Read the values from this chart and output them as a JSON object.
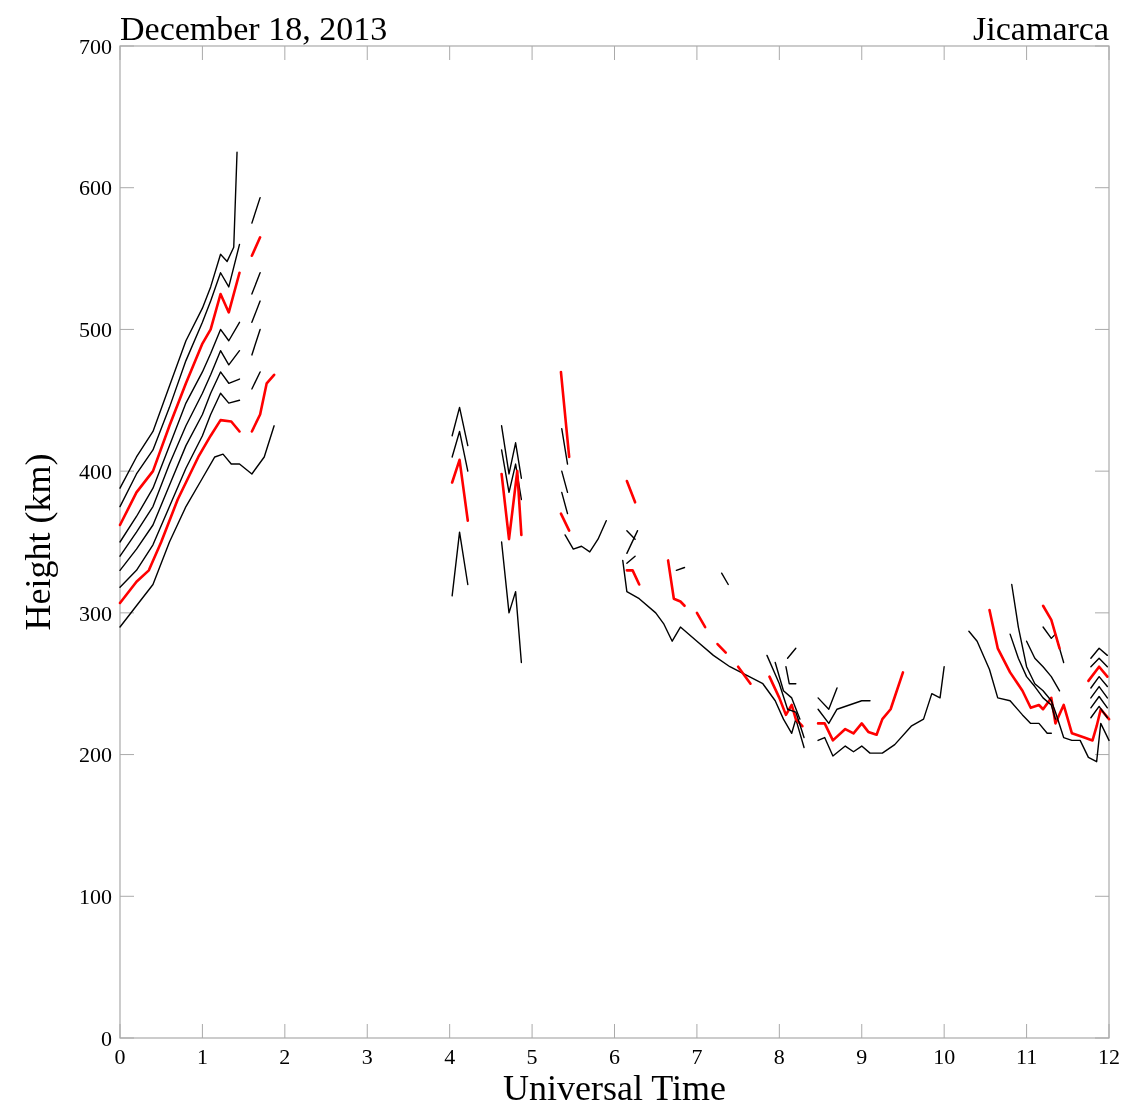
{
  "chart_data": {
    "type": "line",
    "title": "December 18, 2013",
    "subtitle": "Jicamarca",
    "xlabel": "Universal Time",
    "ylabel": "Height (km)",
    "xlim": [
      0,
      12
    ],
    "ylim": [
      0,
      700
    ],
    "xticks": [
      0,
      1,
      2,
      3,
      4,
      5,
      6,
      7,
      8,
      9,
      10,
      11,
      12
    ],
    "yticks": [
      0,
      100,
      200,
      300,
      400,
      500,
      600,
      700
    ],
    "grid": false,
    "series": [
      {
        "color": "#000000",
        "x": [
          0,
          0.2,
          0.4,
          0.6,
          0.8,
          1.0,
          1.15,
          1.25,
          1.35,
          1.45,
          1.6,
          1.75,
          1.87
        ],
        "values": [
          290,
          305,
          320,
          350,
          375,
          395,
          410,
          412,
          405,
          405,
          398,
          410,
          432
        ]
      },
      {
        "color": "#ff0000",
        "x": [
          0,
          0.2,
          0.35,
          0.5,
          0.7,
          0.95,
          1.1,
          1.22,
          1.35,
          1.45
        ],
        "values": [
          307,
          322,
          330,
          350,
          380,
          410,
          425,
          436,
          435,
          428
        ]
      },
      {
        "color": "#000000",
        "x": [
          0,
          0.2,
          0.4,
          0.6,
          0.8,
          1.0,
          1.1,
          1.22,
          1.32,
          1.45
        ],
        "values": [
          318,
          330,
          348,
          375,
          402,
          425,
          440,
          455,
          448,
          450
        ]
      },
      {
        "color": "#000000",
        "x": [
          0,
          0.2,
          0.4,
          0.6,
          0.8,
          1.0,
          1.1,
          1.22,
          1.32,
          1.45
        ],
        "values": [
          330,
          345,
          362,
          390,
          418,
          440,
          455,
          470,
          462,
          465
        ]
      },
      {
        "color": "#000000",
        "x": [
          0,
          0.2,
          0.4,
          0.6,
          0.8,
          1.0,
          1.1,
          1.22,
          1.32,
          1.45
        ],
        "values": [
          340,
          357,
          375,
          405,
          432,
          455,
          468,
          485,
          475,
          485
        ]
      },
      {
        "color": "#000000",
        "x": [
          0,
          0.2,
          0.4,
          0.6,
          0.8,
          1.0,
          1.1,
          1.22,
          1.32,
          1.45
        ],
        "values": [
          350,
          368,
          388,
          418,
          448,
          470,
          483,
          500,
          492,
          505
        ]
      },
      {
        "color": "#ff0000",
        "x": [
          0,
          0.2,
          0.4,
          0.6,
          0.8,
          1.0,
          1.1,
          1.22,
          1.32,
          1.45
        ],
        "values": [
          362,
          385,
          400,
          432,
          462,
          490,
          500,
          525,
          512,
          540
        ]
      },
      {
        "color": "#000000",
        "x": [
          0,
          0.2,
          0.4,
          0.6,
          0.8,
          1.0,
          1.1,
          1.22,
          1.32,
          1.45
        ],
        "values": [
          375,
          398,
          415,
          445,
          478,
          505,
          520,
          540,
          530,
          560
        ]
      },
      {
        "color": "#000000",
        "x": [
          0,
          0.2,
          0.4,
          0.6,
          0.8,
          1.0,
          1.1,
          1.22,
          1.3,
          1.38,
          1.42
        ],
        "values": [
          388,
          410,
          428,
          460,
          492,
          515,
          530,
          553,
          548,
          558,
          625
        ]
      },
      {
        "color": "#000000",
        "x": [
          1.6,
          1.7
        ],
        "values": [
          575,
          593
        ]
      },
      {
        "color": "#ff0000",
        "x": [
          1.6,
          1.7
        ],
        "values": [
          552,
          565
        ]
      },
      {
        "color": "#000000",
        "x": [
          1.6,
          1.7
        ],
        "values": [
          525,
          540
        ]
      },
      {
        "color": "#000000",
        "x": [
          1.6,
          1.7
        ],
        "values": [
          505,
          520
        ]
      },
      {
        "color": "#000000",
        "x": [
          1.6,
          1.7
        ],
        "values": [
          482,
          500
        ]
      },
      {
        "color": "#000000",
        "x": [
          1.6,
          1.7
        ],
        "values": [
          458,
          470
        ]
      },
      {
        "color": "#ff0000",
        "x": [
          1.6,
          1.7,
          1.78,
          1.87
        ],
        "values": [
          428,
          440,
          462,
          468
        ]
      },
      {
        "color": "#000000",
        "x": [
          4.03,
          4.12,
          4.22
        ],
        "values": [
          425,
          445,
          418
        ]
      },
      {
        "color": "#000000",
        "x": [
          4.03,
          4.12,
          4.22
        ],
        "values": [
          410,
          428,
          400
        ]
      },
      {
        "color": "#ff0000",
        "x": [
          4.03,
          4.12,
          4.22
        ],
        "values": [
          392,
          408,
          365
        ]
      },
      {
        "color": "#000000",
        "x": [
          4.03,
          4.12,
          4.22
        ],
        "values": [
          312,
          357,
          320
        ]
      },
      {
        "color": "#000000",
        "x": [
          4.63,
          4.72,
          4.8,
          4.87
        ],
        "values": [
          432,
          398,
          420,
          395
        ]
      },
      {
        "color": "#000000",
        "x": [
          4.63,
          4.72,
          4.8,
          4.87
        ],
        "values": [
          415,
          385,
          405,
          380
        ]
      },
      {
        "color": "#ff0000",
        "x": [
          4.63,
          4.72,
          4.82,
          4.87
        ],
        "values": [
          398,
          352,
          400,
          355
        ]
      },
      {
        "color": "#000000",
        "x": [
          4.63,
          4.72,
          4.8,
          4.87
        ],
        "values": [
          350,
          300,
          315,
          265
        ]
      },
      {
        "color": "#ff0000",
        "x": [
          5.35,
          5.45
        ],
        "values": [
          470,
          410
        ]
      },
      {
        "color": "#000000",
        "x": [
          5.36,
          5.43
        ],
        "values": [
          430,
          405
        ]
      },
      {
        "color": "#000000",
        "x": [
          5.36,
          5.43
        ],
        "values": [
          400,
          385
        ]
      },
      {
        "color": "#000000",
        "x": [
          5.36,
          5.43
        ],
        "values": [
          385,
          370
        ]
      },
      {
        "color": "#ff0000",
        "x": [
          5.35,
          5.45
        ],
        "values": [
          370,
          358
        ]
      },
      {
        "color": "#000000",
        "x": [
          5.4,
          5.5,
          5.6,
          5.7,
          5.8,
          5.9
        ],
        "values": [
          355,
          345,
          347,
          343,
          352,
          365
        ]
      },
      {
        "color": "#ff0000",
        "x": [
          6.15,
          6.25
        ],
        "values": [
          393,
          378
        ]
      },
      {
        "color": "#000000",
        "x": [
          6.15,
          6.25
        ],
        "values": [
          358,
          352
        ]
      },
      {
        "color": "#000000",
        "x": [
          6.15,
          6.28
        ],
        "values": [
          342,
          358
        ]
      },
      {
        "color": "#000000",
        "x": [
          6.15,
          6.25
        ],
        "values": [
          335,
          340
        ]
      },
      {
        "color": "#ff0000",
        "x": [
          6.15,
          6.22,
          6.3
        ],
        "values": [
          330,
          330,
          320
        ]
      },
      {
        "color": "#000000",
        "x": [
          6.1,
          6.15,
          6.3,
          6.5,
          6.6,
          6.7,
          6.8,
          7.0,
          7.2,
          7.4,
          7.6,
          7.8,
          7.95,
          8.05,
          8.15,
          8.2,
          8.3
        ],
        "values": [
          337,
          315,
          310,
          300,
          292,
          280,
          290,
          280,
          270,
          262,
          256,
          250,
          238,
          225,
          215,
          225,
          205
        ]
      },
      {
        "color": "#ff0000",
        "x": [
          6.65,
          6.72,
          6.8,
          6.85
        ],
        "values": [
          337,
          310,
          308,
          305
        ]
      },
      {
        "color": "#ff0000",
        "x": [
          7.0,
          7.1
        ],
        "values": [
          300,
          290
        ]
      },
      {
        "color": "#ff0000",
        "x": [
          7.25,
          7.35
        ],
        "values": [
          278,
          272
        ]
      },
      {
        "color": "#ff0000",
        "x": [
          7.5,
          7.65
        ],
        "values": [
          262,
          250
        ]
      },
      {
        "color": "#ff0000",
        "x": [
          7.88,
          8.0,
          8.08,
          8.15,
          8.2,
          8.28
        ],
        "values": [
          255,
          240,
          228,
          235,
          225,
          220
        ]
      },
      {
        "color": "#000000",
        "x": [
          6.75,
          6.85
        ],
        "values": [
          330,
          332
        ]
      },
      {
        "color": "#000000",
        "x": [
          7.3,
          7.38
        ],
        "values": [
          328,
          320
        ]
      },
      {
        "color": "#000000",
        "x": [
          7.85,
          8.0,
          8.1,
          8.2,
          8.3
        ],
        "values": [
          270,
          250,
          232,
          230,
          212
        ]
      },
      {
        "color": "#000000",
        "x": [
          7.95,
          8.05,
          8.15,
          8.25
        ],
        "values": [
          265,
          245,
          240,
          225
        ]
      },
      {
        "color": "#000000",
        "x": [
          8.08,
          8.12,
          8.2
        ],
        "values": [
          262,
          250,
          250
        ]
      },
      {
        "color": "#000000",
        "x": [
          8.1,
          8.2
        ],
        "values": [
          268,
          275
        ]
      },
      {
        "color": "#000000",
        "x": [
          8.47,
          8.6,
          8.7
        ],
        "values": [
          240,
          232,
          247
        ]
      },
      {
        "color": "#000000",
        "x": [
          8.47,
          8.6,
          8.7,
          8.85,
          9.0,
          9.1
        ],
        "values": [
          232,
          222,
          232,
          235,
          238,
          238
        ]
      },
      {
        "color": "#ff0000",
        "x": [
          8.47,
          8.55,
          8.65,
          8.8,
          8.9,
          9.0,
          9.08,
          9.18,
          9.25,
          9.35,
          9.5
        ],
        "values": [
          222,
          222,
          210,
          218,
          215,
          222,
          216,
          214,
          225,
          232,
          258
        ]
      },
      {
        "color": "#000000",
        "x": [
          8.47,
          8.55,
          8.65,
          8.8,
          8.9,
          9.0,
          9.1,
          9.25,
          9.4,
          9.6,
          9.75,
          9.85,
          9.95,
          10.0
        ],
        "values": [
          210,
          212,
          199,
          206,
          202,
          206,
          201,
          201,
          207,
          220,
          225,
          243,
          240,
          262
        ]
      },
      {
        "color": "#000000",
        "x": [
          10.3,
          10.4,
          10.55,
          10.65,
          10.8,
          10.95,
          11.05,
          11.15,
          11.25,
          11.3
        ],
        "values": [
          287,
          280,
          260,
          240,
          238,
          228,
          222,
          222,
          215,
          215
        ]
      },
      {
        "color": "#ff0000",
        "x": [
          10.55,
          10.65,
          10.8,
          10.95,
          11.05,
          11.15,
          11.2,
          11.3,
          11.35,
          11.45,
          11.55,
          11.7,
          11.8,
          11.85,
          11.9,
          12.0
        ],
        "values": [
          302,
          275,
          258,
          245,
          233,
          235,
          232,
          240,
          222,
          235,
          215,
          212,
          210,
          220,
          232,
          225
        ]
      },
      {
        "color": "#000000",
        "x": [
          10.82,
          10.9,
          11.0,
          11.1,
          11.2,
          11.3,
          11.35,
          11.45,
          11.55,
          11.65,
          11.75,
          11.85,
          11.9,
          12.0
        ],
        "values": [
          320,
          290,
          262,
          250,
          245,
          238,
          230,
          212,
          210,
          210,
          198,
          195,
          222,
          210
        ]
      },
      {
        "color": "#000000",
        "x": [
          10.8,
          10.9,
          11.0,
          11.1,
          11.2,
          11.3,
          11.35
        ],
        "values": [
          285,
          268,
          255,
          248,
          240,
          235,
          225
        ]
      },
      {
        "color": "#000000",
        "x": [
          11.0,
          11.1,
          11.2,
          11.3,
          11.4
        ],
        "values": [
          280,
          268,
          262,
          255,
          245
        ]
      },
      {
        "color": "#000000",
        "x": [
          11.2,
          11.3,
          11.35,
          11.45
        ],
        "values": [
          290,
          282,
          285,
          265
        ]
      },
      {
        "color": "#ff0000",
        "x": [
          11.2,
          11.3,
          11.4
        ],
        "values": [
          305,
          295,
          275
        ]
      },
      {
        "color": "#000000",
        "x": [
          11.78,
          11.88,
          11.98
        ],
        "values": [
          268,
          275,
          270
        ]
      },
      {
        "color": "#000000",
        "x": [
          11.78,
          11.88,
          11.98
        ],
        "values": [
          262,
          268,
          262
        ]
      },
      {
        "color": "#ff0000",
        "x": [
          11.75,
          11.88,
          11.98
        ],
        "values": [
          252,
          262,
          255
        ]
      },
      {
        "color": "#000000",
        "x": [
          11.78,
          11.88,
          11.98
        ],
        "values": [
          247,
          255,
          248
        ]
      },
      {
        "color": "#000000",
        "x": [
          11.78,
          11.88,
          11.98
        ],
        "values": [
          240,
          248,
          240
        ]
      },
      {
        "color": "#000000",
        "x": [
          11.78,
          11.88,
          11.98
        ],
        "values": [
          233,
          241,
          233
        ]
      },
      {
        "color": "#000000",
        "x": [
          11.78,
          11.88,
          11.98
        ],
        "values": [
          226,
          234,
          226
        ]
      }
    ]
  }
}
